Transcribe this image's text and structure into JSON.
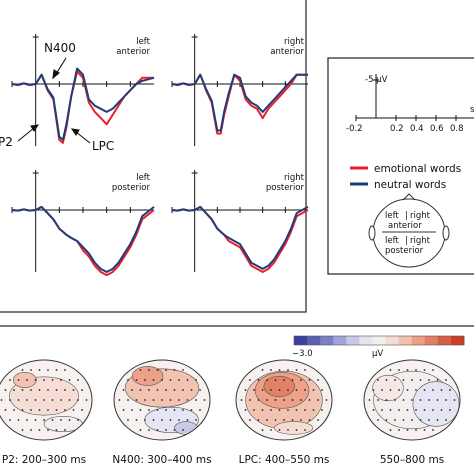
{
  "chart_data": {
    "type": "line",
    "panels": [
      {
        "id": "la",
        "label_line1": "left",
        "label_line2": "anterior"
      },
      {
        "id": "ra",
        "label_line1": "right",
        "label_line2": "anterior"
      },
      {
        "id": "lp",
        "label_line1": "left",
        "label_line2": "posterior"
      },
      {
        "id": "rp",
        "label_line1": "right",
        "label_line2": "posterior"
      }
    ],
    "components": [
      {
        "panel": "la",
        "label": "N400",
        "at_ms": 400
      },
      {
        "panel": "la",
        "label": "P2",
        "at_ms": 230
      },
      {
        "panel": "la",
        "label": "LPC",
        "at_ms": 600
      }
    ],
    "scale": {
      "y_label": "-5 μV",
      "x_ticks": [
        "-0.2",
        "0.2",
        "0.4",
        "0.6",
        "0.8"
      ],
      "x_unit": "s"
    },
    "legend": [
      {
        "name": "emotional words",
        "color": "#e8202a"
      },
      {
        "name": "neutral words",
        "color": "#1f3d7a"
      }
    ],
    "head_legend": {
      "top_left": "left",
      "top_right": "right",
      "top_region": "anterior",
      "bottom_left": "left",
      "bottom_right": "right",
      "bottom_region": "posterior"
    },
    "x_range_ms": [
      -200,
      1000
    ],
    "y_axis": "negative up",
    "series": [
      {
        "name": "emotional words",
        "panels": {
          "la": {
            "t": [
              -200,
              -150,
              -100,
              -50,
              0,
              50,
              100,
              150,
              200,
              230,
              260,
              300,
              350,
              400,
              450,
              500,
              550,
              600,
              650,
              700,
              750,
              800,
              850,
              900,
              1000
            ],
            "v": [
              0,
              0.2,
              -0.1,
              0.2,
              0,
              -1.5,
              1,
              2.5,
              9,
              9.5,
              7,
              2,
              -2,
              -1,
              3,
              4.5,
              5.5,
              6.5,
              5,
              3.5,
              2,
              1,
              0,
              -1,
              -1
            ]
          },
          "ra": {
            "t": [
              -200,
              -150,
              -100,
              -50,
              0,
              50,
              100,
              150,
              200,
              230,
              260,
              300,
              350,
              400,
              450,
              500,
              550,
              600,
              650,
              700,
              750,
              800,
              850,
              900,
              1000
            ],
            "v": [
              0,
              0.2,
              -0.1,
              0.2,
              0,
              -1.5,
              1,
              3,
              8,
              8,
              5,
              2,
              -1.5,
              -0.5,
              2.5,
              3.5,
              4,
              5.5,
              4,
              3,
              2,
              1,
              0,
              -1.5,
              -1.5
            ]
          },
          "lp": {
            "t": [
              -200,
              -150,
              -100,
              -50,
              0,
              50,
              100,
              150,
              200,
              230,
              260,
              300,
              350,
              400,
              450,
              500,
              550,
              600,
              650,
              700,
              750,
              800,
              850,
              900,
              1000
            ],
            "v": [
              0,
              0.1,
              -0.1,
              0.1,
              0,
              -0.5,
              0.5,
              1.5,
              3,
              3.5,
              4,
              4.5,
              5,
              6.5,
              7.5,
              9,
              10,
              10.5,
              10,
              9,
              7.5,
              6,
              4,
              1.5,
              0
            ]
          },
          "rp": {
            "t": [
              -200,
              -150,
              -100,
              -50,
              0,
              50,
              100,
              150,
              200,
              230,
              260,
              300,
              350,
              400,
              450,
              500,
              550,
              600,
              650,
              700,
              750,
              800,
              850,
              900,
              1000
            ],
            "v": [
              0,
              0.1,
              -0.1,
              0.1,
              0,
              -0.5,
              0.5,
              1.5,
              3,
              3.5,
              4,
              5,
              5.5,
              6,
              7.5,
              9,
              9.5,
              10,
              9.5,
              8.5,
              7,
              5.5,
              3.5,
              1,
              0
            ]
          }
        }
      },
      {
        "name": "neutral words",
        "panels": {
          "la": {
            "t": [
              -200,
              -150,
              -100,
              -50,
              0,
              50,
              100,
              150,
              200,
              230,
              260,
              300,
              350,
              400,
              450,
              500,
              550,
              600,
              650,
              700,
              750,
              800,
              850,
              900,
              1000
            ],
            "v": [
              0,
              0.1,
              -0.1,
              0.1,
              0,
              -1.5,
              0.8,
              2.2,
              8.5,
              9,
              6.5,
              2,
              -2.5,
              -1.5,
              2.5,
              3.5,
              4,
              4.5,
              4,
              3,
              2,
              1,
              0,
              -0.5,
              -1
            ]
          },
          "ra": {
            "t": [
              -200,
              -150,
              -100,
              -50,
              0,
              50,
              100,
              150,
              200,
              230,
              260,
              300,
              350,
              400,
              450,
              500,
              550,
              600,
              650,
              700,
              750,
              800,
              850,
              900,
              1000
            ],
            "v": [
              0,
              0.1,
              -0.1,
              0.1,
              0,
              -1.5,
              0.8,
              2.7,
              7.5,
              7.5,
              4.5,
              1.5,
              -1.5,
              -1,
              2,
              3,
              3.5,
              4.5,
              3.5,
              2.5,
              1.5,
              0.5,
              -0.5,
              -1.5,
              -1.5
            ]
          },
          "lp": {
            "t": [
              -200,
              -150,
              -100,
              -50,
              0,
              50,
              100,
              150,
              200,
              230,
              260,
              300,
              350,
              400,
              450,
              500,
              550,
              600,
              650,
              700,
              750,
              800,
              850,
              900,
              1000
            ],
            "v": [
              0,
              0.1,
              -0.1,
              0.1,
              0,
              -0.5,
              0.5,
              1.5,
              3,
              3.5,
              4,
              4.5,
              5,
              6,
              7,
              8.5,
              9.5,
              10,
              9.5,
              8.5,
              7,
              5.5,
              3.5,
              1,
              -0.5
            ]
          },
          "rp": {
            "t": [
              -200,
              -150,
              -100,
              -50,
              0,
              50,
              100,
              150,
              200,
              230,
              260,
              300,
              350,
              400,
              450,
              500,
              550,
              600,
              650,
              700,
              750,
              800,
              850,
              900,
              1000
            ],
            "v": [
              0,
              0.1,
              -0.1,
              0.1,
              0,
              -0.5,
              0.5,
              1.5,
              3,
              3.5,
              4,
              4.5,
              5,
              5.5,
              7,
              8.5,
              9,
              9.5,
              9,
              8,
              6.5,
              5,
              3,
              0.5,
              -0.5
            ]
          }
        }
      }
    ],
    "colorbar": {
      "min_label": "−3.0",
      "unit": "μV",
      "colors": [
        "#3b3f9e",
        "#5a5fb0",
        "#7b80c4",
        "#a0a4d6",
        "#c6c8e6",
        "#e4e4f2",
        "#f3eeee",
        "#f6dcd4",
        "#f2c0ad",
        "#eb9f86",
        "#e07f63",
        "#d55f44",
        "#c84028"
      ]
    },
    "topomaps": [
      {
        "caption": "P2: 200–300 ms",
        "blobs": [
          {
            "cx": 0.5,
            "cy": 0.45,
            "rx": 0.45,
            "ry": 0.3,
            "color": "#f6dcd4"
          },
          {
            "cx": 0.3,
            "cy": 0.25,
            "rx": 0.15,
            "ry": 0.12,
            "color": "#f2c0ad"
          },
          {
            "cx": 0.7,
            "cy": 0.8,
            "rx": 0.25,
            "ry": 0.12,
            "color": "#f3eeee"
          }
        ]
      },
      {
        "caption": "N400: 300–400 ms",
        "blobs": [
          {
            "cx": 0.5,
            "cy": 0.35,
            "rx": 0.48,
            "ry": 0.3,
            "color": "#f2c0ad"
          },
          {
            "cx": 0.35,
            "cy": 0.2,
            "rx": 0.2,
            "ry": 0.15,
            "color": "#eb9f86"
          },
          {
            "cx": 0.6,
            "cy": 0.75,
            "rx": 0.35,
            "ry": 0.2,
            "color": "#e4e4f2"
          },
          {
            "cx": 0.75,
            "cy": 0.85,
            "rx": 0.15,
            "ry": 0.1,
            "color": "#c6c8e6"
          }
        ]
      },
      {
        "caption": "LPC: 400–550 ms",
        "blobs": [
          {
            "cx": 0.5,
            "cy": 0.5,
            "rx": 0.5,
            "ry": 0.45,
            "color": "#f2c0ad"
          },
          {
            "cx": 0.48,
            "cy": 0.38,
            "rx": 0.35,
            "ry": 0.28,
            "color": "#eb9f86"
          },
          {
            "cx": 0.45,
            "cy": 0.33,
            "rx": 0.2,
            "ry": 0.16,
            "color": "#e07f63"
          },
          {
            "cx": 0.6,
            "cy": 0.85,
            "rx": 0.25,
            "ry": 0.1,
            "color": "#f6dcd4"
          }
        ]
      },
      {
        "caption": "550–800 ms",
        "blobs": [
          {
            "cx": 0.5,
            "cy": 0.5,
            "rx": 0.5,
            "ry": 0.45,
            "color": "#f3eeee"
          },
          {
            "cx": 0.75,
            "cy": 0.55,
            "rx": 0.3,
            "ry": 0.35,
            "color": "#e4e4f2"
          },
          {
            "cx": 0.25,
            "cy": 0.35,
            "rx": 0.2,
            "ry": 0.2,
            "color": "#f6e8e4"
          }
        ]
      }
    ]
  }
}
